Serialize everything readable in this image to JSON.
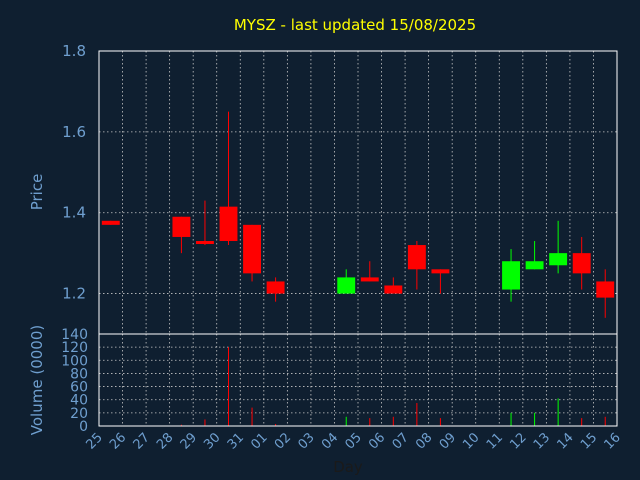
{
  "chart_data": {
    "type": "candlestick",
    "title": "MYSZ - last updated 15/08/2025",
    "price_panel": {
      "ylabel": "Price",
      "ylim": [
        1.1,
        1.8
      ],
      "yticks": [
        "1.2",
        "1.4",
        "1.6",
        "1.8"
      ],
      "grid": true
    },
    "volume_panel": {
      "ylabel": "Volume (0000)",
      "ylim": [
        0,
        140
      ],
      "yticks": [
        "0",
        "20",
        "40",
        "60",
        "80",
        "100",
        "120",
        "140"
      ],
      "grid": true
    },
    "xlabel": "Day",
    "x_ticks": [
      "25",
      "26",
      "27",
      "28",
      "29",
      "30",
      "31",
      "01",
      "02",
      "03",
      "04",
      "05",
      "06",
      "07",
      "08",
      "09",
      "10",
      "11",
      "12",
      "13",
      "14",
      "15",
      "16"
    ],
    "colors": {
      "up": "#00ff00",
      "down": "#ff0000",
      "title": "#ffff00",
      "axis_text": "#6f9fcf",
      "background": "#0f1f30"
    },
    "candles": [
      {
        "day": "25",
        "open": 1.38,
        "high": 1.38,
        "low": 1.37,
        "close": 1.37,
        "volume": 0
      },
      {
        "day": "28",
        "open": 1.39,
        "high": 1.39,
        "low": 1.3,
        "close": 1.34,
        "volume": 2
      },
      {
        "day": "29",
        "open": 1.33,
        "high": 1.43,
        "low": 1.32,
        "close": 1.325,
        "volume": 10
      },
      {
        "day": "30",
        "open": 1.415,
        "high": 1.65,
        "low": 1.32,
        "close": 1.33,
        "volume": 120
      },
      {
        "day": "31",
        "open": 1.37,
        "high": 1.37,
        "low": 1.23,
        "close": 1.25,
        "volume": 28
      },
      {
        "day": "01",
        "open": 1.23,
        "high": 1.24,
        "low": 1.18,
        "close": 1.2,
        "volume": 3
      },
      {
        "day": "04",
        "open": 1.2,
        "high": 1.26,
        "low": 1.2,
        "close": 1.24,
        "volume": 14
      },
      {
        "day": "05",
        "open": 1.24,
        "high": 1.28,
        "low": 1.23,
        "close": 1.23,
        "volume": 12
      },
      {
        "day": "06",
        "open": 1.22,
        "high": 1.24,
        "low": 1.2,
        "close": 1.2,
        "volume": 14
      },
      {
        "day": "07",
        "open": 1.32,
        "high": 1.33,
        "low": 1.21,
        "close": 1.26,
        "volume": 35
      },
      {
        "day": "08",
        "open": 1.26,
        "high": 1.26,
        "low": 1.2,
        "close": 1.25,
        "volume": 12
      },
      {
        "day": "11",
        "open": 1.21,
        "high": 1.31,
        "low": 1.18,
        "close": 1.28,
        "volume": 20
      },
      {
        "day": "12",
        "open": 1.26,
        "high": 1.33,
        "low": 1.26,
        "close": 1.28,
        "volume": 20
      },
      {
        "day": "13",
        "open": 1.27,
        "high": 1.38,
        "low": 1.25,
        "close": 1.3,
        "volume": 42
      },
      {
        "day": "14",
        "open": 1.3,
        "high": 1.34,
        "low": 1.21,
        "close": 1.25,
        "volume": 12
      },
      {
        "day": "15",
        "open": 1.23,
        "high": 1.26,
        "low": 1.14,
        "close": 1.19,
        "volume": 14
      }
    ]
  }
}
